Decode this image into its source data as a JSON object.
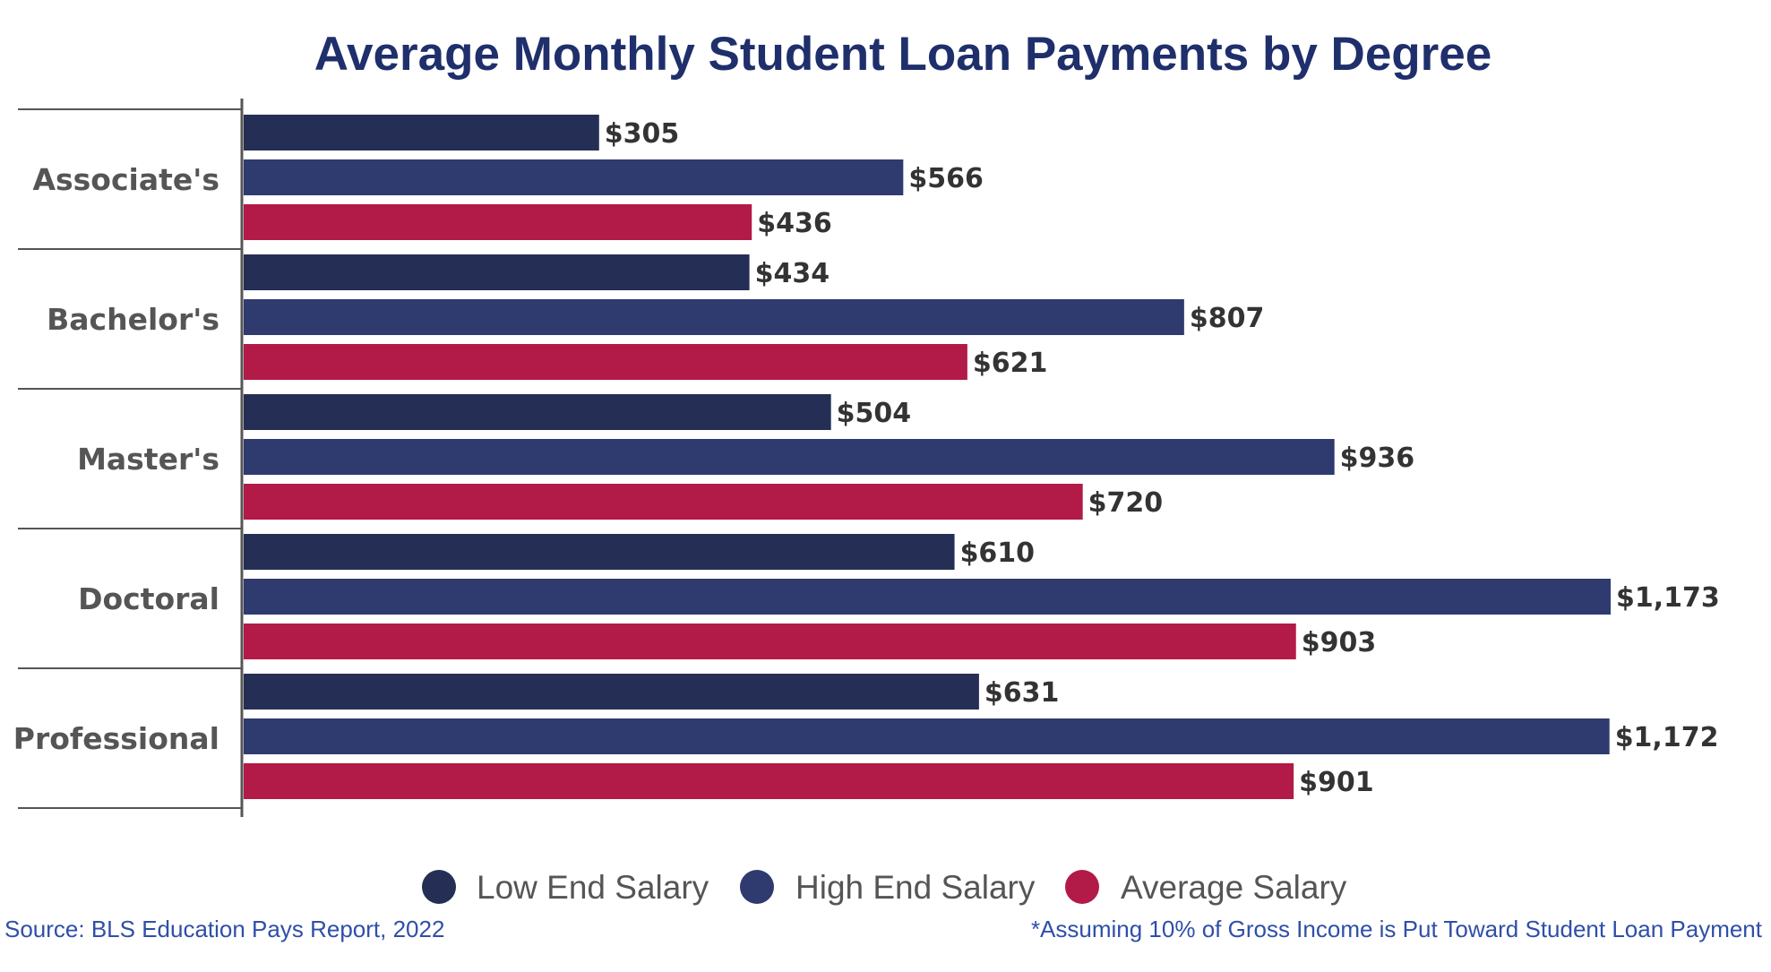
{
  "chart_data": {
    "type": "bar",
    "orientation": "horizontal",
    "title": "Average Monthly Student Loan Payments by Degree",
    "xlabel": "",
    "ylabel": "",
    "categories": [
      "Associate's",
      "Bachelor's",
      "Master's",
      "Doctoral",
      "Professional"
    ],
    "series": [
      {
        "name": "Low End Salary",
        "color": "#252f55",
        "values": [
          305,
          434,
          504,
          610,
          631
        ],
        "labels": [
          "$305",
          "$434",
          "$504",
          "$610",
          "$631"
        ]
      },
      {
        "name": "High End Salary",
        "color": "#2f3a6f",
        "values": [
          566,
          807,
          936,
          1173,
          1172
        ],
        "labels": [
          "$566",
          "$807",
          "$936",
          "$1,173",
          "$1,172"
        ]
      },
      {
        "name": "Average Salary",
        "color": "#b21a48",
        "values": [
          436,
          621,
          720,
          903,
          901
        ],
        "labels": [
          "$436",
          "$621",
          "$720",
          "$903",
          "$901"
        ]
      }
    ],
    "xlim": [
      0,
      1173
    ],
    "grid": false,
    "legend_position": "bottom-center"
  },
  "colors": {
    "title": "#1f2f6b",
    "category_text": "#555555",
    "bar_label_text": "#333333",
    "legend_text": "#555555",
    "footnote_text": "#2f4fa8",
    "rule": "#555555"
  },
  "footer": {
    "source": "Source: BLS Education Pays Report, 2022",
    "note": "*Assuming 10% of Gross Income is Put Toward Student Loan Payment"
  }
}
